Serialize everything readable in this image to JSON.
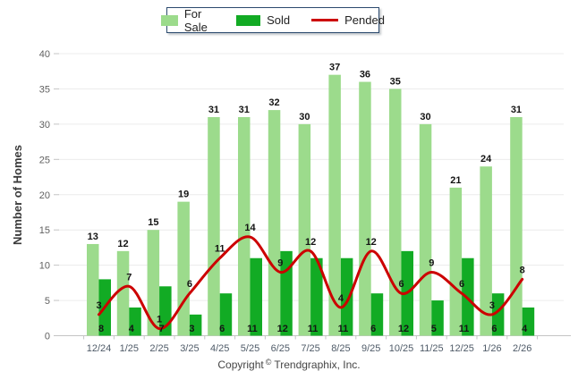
{
  "legend": {
    "items": [
      {
        "label": "For Sale",
        "color": "#9CDB8C",
        "swatch": "box"
      },
      {
        "label": "Sold",
        "color": "#12AB24",
        "swatch": "box"
      },
      {
        "label": "Pended",
        "color": "#CC0000",
        "swatch": "line"
      }
    ]
  },
  "footer": {
    "prefix": "Copyright",
    "symbol": "©",
    "suffix": "Trendgraphix, Inc."
  },
  "chart_data": {
    "type": "bar",
    "subtype": "grouped-bars-with-smoothed-line-overlay",
    "title": "",
    "xlabel": "",
    "ylabel": "Number of Homes",
    "categories": [
      "12/24",
      "1/25",
      "2/25",
      "3/25",
      "4/25",
      "5/25",
      "6/25",
      "7/25",
      "8/25",
      "9/25",
      "10/25",
      "11/25",
      "12/25",
      "1/26",
      "2/26"
    ],
    "series": [
      {
        "name": "For Sale",
        "type": "bar",
        "color": "#9CDB8C",
        "values": [
          13,
          12,
          15,
          19,
          31,
          31,
          32,
          30,
          37,
          36,
          35,
          30,
          21,
          24,
          31
        ]
      },
      {
        "name": "Sold",
        "type": "bar",
        "color": "#12AB24",
        "values": [
          8,
          4,
          7,
          3,
          6,
          11,
          12,
          11,
          11,
          6,
          12,
          5,
          11,
          6,
          4
        ]
      },
      {
        "name": "Pended",
        "type": "line",
        "color": "#CC0000",
        "values": [
          3,
          7,
          1,
          6,
          11,
          14,
          9,
          12,
          4,
          12,
          6,
          9,
          6,
          3,
          8
        ]
      }
    ],
    "ylim": [
      0,
      40
    ],
    "yticks": [
      0,
      5,
      10,
      15,
      20,
      25,
      30,
      35,
      40
    ],
    "grid": "horizontal",
    "gridline_color": "#ECECEC",
    "axis_color": "#C4C4C4",
    "legend_position": "top-center",
    "value_labels": true
  }
}
